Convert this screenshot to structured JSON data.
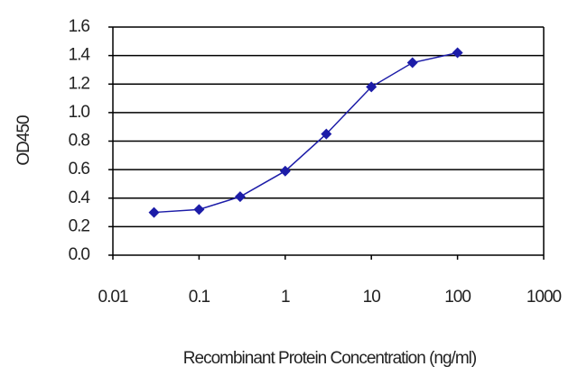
{
  "chart_data": {
    "type": "line",
    "x": [
      0.03,
      0.1,
      0.3,
      1,
      3,
      10,
      30,
      100
    ],
    "values": [
      0.3,
      0.32,
      0.41,
      0.59,
      0.85,
      1.18,
      1.35,
      1.42
    ],
    "color": "#1c1ca8",
    "marker": "diamond",
    "xscale": "log",
    "xlim": [
      0.01,
      1000
    ],
    "xticks": [
      0.01,
      0.1,
      1,
      10,
      100,
      1000
    ],
    "ylim": [
      0,
      1.6
    ],
    "yticks": [
      {
        "value": 0,
        "label": "0.0"
      },
      0.2,
      0.4,
      0.6,
      0.8,
      {
        "value": 1,
        "label": "1.0"
      },
      1.2,
      1.4,
      1.6
    ],
    "grid": true,
    "xlabel": "Recombinant Protein Concentration (ng/ml)",
    "ylabel": "OD450"
  }
}
